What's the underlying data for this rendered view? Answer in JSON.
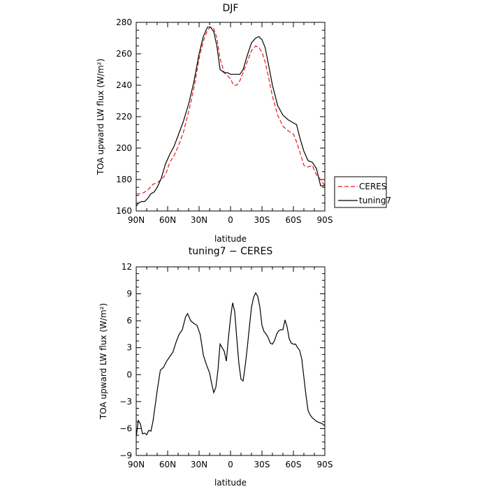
{
  "chart_data": [
    {
      "type": "line",
      "title": "DJF",
      "xlabel": "latitude",
      "ylabel": "TOA upward LW flux (W/m²)",
      "xlim": [
        -90,
        90
      ],
      "ylim": [
        160,
        280
      ],
      "x_ticks": [
        -90,
        -60,
        -30,
        0,
        30,
        60,
        90
      ],
      "x_tick_labels": [
        "90N",
        "60N",
        "30N",
        "0",
        "30S",
        "60S",
        "90S"
      ],
      "y_ticks": [
        160,
        180,
        200,
        220,
        240,
        260,
        280
      ],
      "y_tick_labels": [
        "160",
        "180",
        "200",
        "220",
        "240",
        "260",
        "280"
      ],
      "legend_position": "right",
      "series": [
        {
          "name": "CERES",
          "color": "#e8191c",
          "dash": "dashed",
          "x": [
            -90,
            -85,
            -82,
            -78,
            -74,
            -70,
            -66,
            -62,
            -58,
            -54,
            -50,
            -45,
            -40,
            -35,
            -30,
            -26,
            -22,
            -19,
            -16,
            -13,
            -10,
            -6,
            -3,
            0,
            3,
            6,
            9,
            12,
            16,
            20,
            24,
            27,
            30,
            33,
            36,
            40,
            45,
            50,
            55,
            60,
            63,
            66,
            70,
            74,
            78,
            82,
            86,
            90
          ],
          "y": [
            171,
            171,
            172,
            174,
            177,
            178,
            180,
            183,
            191,
            195,
            201,
            210,
            223,
            238,
            257,
            268,
            275,
            277,
            276,
            270,
            257,
            248,
            246,
            244,
            240,
            240,
            243,
            248,
            255,
            262,
            265,
            264,
            261,
            255,
            246,
            233,
            221,
            214,
            211,
            209,
            204,
            198,
            189,
            188,
            189,
            183,
            180,
            176
          ]
        },
        {
          "name": "tuning7",
          "color": "#000000",
          "dash": "solid",
          "x": [
            -90,
            -88,
            -85,
            -82,
            -79,
            -76,
            -73,
            -70,
            -66,
            -62,
            -58,
            -54,
            -50,
            -45,
            -40,
            -35,
            -30,
            -26,
            -22,
            -19,
            -16,
            -13,
            -10,
            -6,
            -3,
            0,
            3,
            6,
            9,
            12,
            16,
            20,
            24,
            27,
            30,
            33,
            36,
            40,
            45,
            50,
            55,
            60,
            63,
            66,
            70,
            74,
            78,
            82,
            86,
            90
          ],
          "y": [
            163,
            165,
            166,
            166,
            168,
            171,
            172,
            175,
            181,
            190,
            196,
            201,
            208,
            217,
            228,
            242,
            260,
            271,
            277,
            277,
            274,
            265,
            250,
            248,
            248,
            247,
            247,
            247,
            247,
            250,
            259,
            267,
            270,
            271,
            269,
            264,
            254,
            240,
            227,
            221,
            218,
            216,
            215,
            207,
            198,
            192,
            191,
            187,
            176,
            176
          ]
        }
      ]
    },
    {
      "type": "line",
      "title": "tuning7 − CERES",
      "xlabel": "latitude",
      "ylabel": "TOA upward LW flux (W/m²)",
      "xlim": [
        -90,
        90
      ],
      "ylim": [
        -9,
        12
      ],
      "x_ticks": [
        -90,
        -60,
        -30,
        0,
        30,
        60,
        90
      ],
      "x_tick_labels": [
        "90N",
        "60N",
        "30N",
        "0",
        "30S",
        "60S",
        "90S"
      ],
      "y_ticks": [
        -9,
        -6,
        -3,
        0,
        3,
        6,
        9,
        12
      ],
      "y_tick_labels": [
        "−9",
        "−6",
        "−3",
        "0",
        "3",
        "6",
        "9",
        "12"
      ],
      "series": [
        {
          "color": "#000000",
          "dash": "solid",
          "x": [
            -90,
            -88,
            -86,
            -84,
            -82,
            -80,
            -78,
            -76,
            -74,
            -72,
            -70,
            -67,
            -64,
            -61,
            -58,
            -55,
            -52,
            -49,
            -46,
            -43,
            -41,
            -38,
            -35,
            -32,
            -29,
            -26,
            -23,
            -20,
            -18,
            -16,
            -14,
            -12,
            -10,
            -8,
            -6,
            -4,
            -2,
            0,
            2,
            4,
            6,
            8,
            10,
            12,
            14,
            16,
            18,
            20,
            22,
            24,
            26,
            28,
            30,
            32,
            34,
            36,
            38,
            40,
            42,
            44,
            46,
            48,
            50,
            52,
            54,
            56,
            58,
            60,
            62,
            64,
            66,
            68,
            70,
            72,
            74,
            76,
            78,
            80,
            82,
            84,
            86,
            88,
            90
          ],
          "y": [
            -6.9,
            -5.1,
            -5.5,
            -6.6,
            -6.5,
            -6.7,
            -6.2,
            -6.3,
            -5.2,
            -3.5,
            -1.8,
            0.5,
            0.8,
            1.5,
            2.0,
            2.5,
            3.6,
            4.5,
            5.0,
            6.4,
            6.8,
            6.0,
            5.7,
            5.5,
            4.5,
            2.2,
            1.1,
            0.2,
            -1.0,
            -2.0,
            -1.4,
            0.5,
            3.4,
            3.0,
            2.6,
            1.5,
            4.1,
            6.3,
            8.0,
            7.0,
            4.0,
            1.2,
            -0.5,
            -0.7,
            1.0,
            3.0,
            5.3,
            7.5,
            8.6,
            9.1,
            8.7,
            7.5,
            5.5,
            4.8,
            4.5,
            4.1,
            3.5,
            3.4,
            3.8,
            4.5,
            4.9,
            5.0,
            5.0,
            6.1,
            5.3,
            4.0,
            3.5,
            3.4,
            3.4,
            3.0,
            2.7,
            1.7,
            -0.3,
            -2.3,
            -4.0,
            -4.5,
            -4.8,
            -5.0,
            -5.2,
            -5.3,
            -5.4,
            -5.5,
            -5.7
          ]
        }
      ]
    }
  ]
}
